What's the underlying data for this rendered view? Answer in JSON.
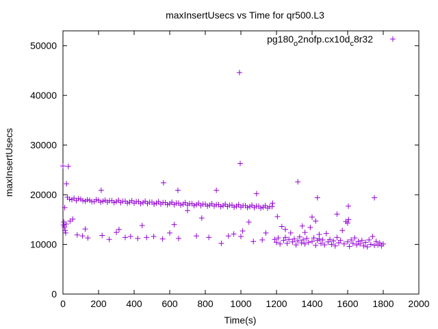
{
  "chart_data": {
    "type": "scatter",
    "title": "maxInsertUsecs vs Time for qr500.L3",
    "xlabel": "Time(s)",
    "ylabel": "maxInsertUsecs",
    "xlim": [
      0,
      2000
    ],
    "ylim": [
      0,
      53000
    ],
    "xticks": [
      0,
      200,
      400,
      600,
      800,
      1000,
      1200,
      1400,
      1600,
      1800,
      2000
    ],
    "yticks": [
      0,
      10000,
      20000,
      30000,
      40000,
      50000
    ],
    "grid": false,
    "legend_position": "top-right",
    "series": [
      {
        "name": "pg180",
        "name_sub": "o",
        "name_mid": "2nofp.cx10d",
        "name_sub2": "c",
        "name_end": "8r32",
        "color": "#9400d3",
        "marker": "plus",
        "points": [
          [
            0,
            25800
          ],
          [
            30,
            25700
          ],
          [
            20,
            22200
          ],
          [
            215,
            20900
          ],
          [
            565,
            22400
          ],
          [
            646,
            20900
          ],
          [
            862,
            20900
          ],
          [
            992,
            44600
          ],
          [
            996,
            26300
          ],
          [
            1088,
            20200
          ],
          [
            1320,
            22600
          ],
          [
            1430,
            19400
          ],
          [
            1750,
            19400
          ],
          [
            1604,
            17700
          ],
          [
            10,
            17400
          ],
          [
            5,
            14500
          ],
          [
            8,
            13500
          ],
          [
            12,
            12800
          ],
          [
            15,
            12300
          ],
          [
            3,
            13900
          ],
          [
            18,
            14100
          ],
          [
            40,
            14700
          ],
          [
            55,
            15100
          ],
          [
            125,
            13100
          ],
          [
            80,
            11900
          ],
          [
            110,
            11700
          ],
          [
            140,
            11300
          ],
          [
            220,
            11800
          ],
          [
            260,
            11000
          ],
          [
            300,
            12400
          ],
          [
            315,
            13000
          ],
          [
            350,
            11400
          ],
          [
            380,
            11600
          ],
          [
            420,
            11200
          ],
          [
            445,
            13800
          ],
          [
            470,
            11400
          ],
          [
            510,
            11600
          ],
          [
            560,
            11100
          ],
          [
            600,
            12300
          ],
          [
            625,
            14000
          ],
          [
            650,
            11200
          ],
          [
            700,
            16800
          ],
          [
            750,
            11700
          ],
          [
            780,
            15300
          ],
          [
            820,
            11400
          ],
          [
            890,
            10200
          ],
          [
            930,
            11700
          ],
          [
            960,
            12100
          ],
          [
            1000,
            11600
          ],
          [
            1010,
            12700
          ],
          [
            1045,
            14500
          ],
          [
            1070,
            10600
          ],
          [
            1120,
            10900
          ],
          [
            1140,
            12300
          ],
          [
            25,
            19500
          ],
          [
            37,
            19100
          ],
          [
            50,
            19000
          ],
          [
            62,
            19300
          ],
          [
            75,
            18800
          ],
          [
            87,
            19200
          ],
          [
            100,
            19100
          ],
          [
            112,
            18800
          ],
          [
            125,
            18700
          ],
          [
            137,
            19000
          ],
          [
            150,
            18900
          ],
          [
            162,
            18600
          ],
          [
            175,
            18600
          ],
          [
            187,
            19000
          ],
          [
            200,
            18900
          ],
          [
            212,
            18500
          ],
          [
            225,
            18700
          ],
          [
            237,
            18900
          ],
          [
            250,
            18500
          ],
          [
            262,
            18800
          ],
          [
            275,
            18800
          ],
          [
            287,
            18400
          ],
          [
            300,
            18600
          ],
          [
            312,
            18900
          ],
          [
            325,
            18400
          ],
          [
            337,
            18700
          ],
          [
            350,
            18700
          ],
          [
            362,
            18300
          ],
          [
            375,
            18500
          ],
          [
            387,
            18800
          ],
          [
            400,
            18300
          ],
          [
            412,
            18600
          ],
          [
            425,
            18600
          ],
          [
            437,
            18200
          ],
          [
            450,
            18400
          ],
          [
            462,
            18700
          ],
          [
            475,
            18200
          ],
          [
            487,
            18500
          ],
          [
            500,
            18500
          ],
          [
            512,
            18100
          ],
          [
            525,
            18300
          ],
          [
            537,
            18600
          ],
          [
            550,
            18100
          ],
          [
            562,
            18400
          ],
          [
            575,
            18400
          ],
          [
            587,
            18000
          ],
          [
            600,
            18200
          ],
          [
            612,
            18500
          ],
          [
            625,
            18000
          ],
          [
            637,
            18300
          ],
          [
            650,
            18300
          ],
          [
            662,
            17900
          ],
          [
            675,
            18100
          ],
          [
            687,
            18400
          ],
          [
            700,
            17900
          ],
          [
            712,
            18200
          ],
          [
            725,
            18200
          ],
          [
            737,
            17800
          ],
          [
            750,
            18000
          ],
          [
            762,
            18300
          ],
          [
            775,
            17800
          ],
          [
            787,
            18100
          ],
          [
            800,
            18100
          ],
          [
            812,
            17700
          ],
          [
            825,
            17900
          ],
          [
            837,
            18200
          ],
          [
            850,
            17700
          ],
          [
            862,
            18000
          ],
          [
            875,
            18000
          ],
          [
            887,
            17600
          ],
          [
            900,
            17800
          ],
          [
            912,
            18100
          ],
          [
            925,
            17600
          ],
          [
            937,
            17900
          ],
          [
            950,
            17900
          ],
          [
            962,
            17500
          ],
          [
            975,
            17700
          ],
          [
            987,
            18000
          ],
          [
            1000,
            17500
          ],
          [
            1012,
            17800
          ],
          [
            1025,
            17800
          ],
          [
            1037,
            17400
          ],
          [
            1050,
            17600
          ],
          [
            1062,
            17900
          ],
          [
            1075,
            17400
          ],
          [
            1087,
            17700
          ],
          [
            1100,
            17700
          ],
          [
            1112,
            17300
          ],
          [
            1125,
            17500
          ],
          [
            1137,
            17800
          ],
          [
            1150,
            17300
          ],
          [
            1162,
            17600
          ],
          [
            1175,
            17600
          ],
          [
            1178,
            18300
          ],
          [
            1190,
            11000
          ],
          [
            1200,
            10400
          ],
          [
            1210,
            11300
          ],
          [
            1220,
            10100
          ],
          [
            1230,
            13600
          ],
          [
            1240,
            10800
          ],
          [
            1250,
            11400
          ],
          [
            1260,
            10200
          ],
          [
            1270,
            11000
          ],
          [
            1280,
            12300
          ],
          [
            1290,
            10500
          ],
          [
            1300,
            11100
          ],
          [
            1310,
            9900
          ],
          [
            1320,
            10700
          ],
          [
            1330,
            11500
          ],
          [
            1340,
            10300
          ],
          [
            1350,
            10900
          ],
          [
            1360,
            10100
          ],
          [
            1370,
            11200
          ],
          [
            1380,
            10400
          ],
          [
            1390,
            13400
          ],
          [
            1400,
            10600
          ],
          [
            1410,
            11300
          ],
          [
            1420,
            9800
          ],
          [
            1430,
            10800
          ],
          [
            1440,
            11100
          ],
          [
            1450,
            10200
          ],
          [
            1460,
            10900
          ],
          [
            1470,
            9900
          ],
          [
            1480,
            12200
          ],
          [
            1490,
            10500
          ],
          [
            1500,
            11000
          ],
          [
            1510,
            10000
          ],
          [
            1520,
            10700
          ],
          [
            1530,
            9700
          ],
          [
            1540,
            11400
          ],
          [
            1550,
            10300
          ],
          [
            1560,
            10800
          ],
          [
            1570,
            12800
          ],
          [
            1580,
            10100
          ],
          [
            1590,
            14600
          ],
          [
            1600,
            10500
          ],
          [
            1610,
            9600
          ],
          [
            1620,
            10900
          ],
          [
            1630,
            10200
          ],
          [
            1640,
            11300
          ],
          [
            1650,
            9900
          ],
          [
            1660,
            10600
          ],
          [
            1670,
            10100
          ],
          [
            1680,
            10800
          ],
          [
            1690,
            9700
          ],
          [
            1700,
            10400
          ],
          [
            1710,
            9500
          ],
          [
            1720,
            10900
          ],
          [
            1730,
            10000
          ],
          [
            1740,
            11600
          ],
          [
            1750,
            9800
          ],
          [
            1760,
            10600
          ],
          [
            1770,
            9900
          ],
          [
            1780,
            10300
          ],
          [
            1790,
            9700
          ],
          [
            1800,
            10100
          ],
          [
            1205,
            15600
          ],
          [
            1250,
            13000
          ],
          [
            1345,
            13700
          ],
          [
            1400,
            15500
          ],
          [
            1440,
            12000
          ],
          [
            1540,
            16100
          ],
          [
            1605,
            15000
          ],
          [
            1600,
            14300
          ],
          [
            1360,
            12400
          ],
          [
            1420,
            14700
          ]
        ]
      }
    ]
  }
}
